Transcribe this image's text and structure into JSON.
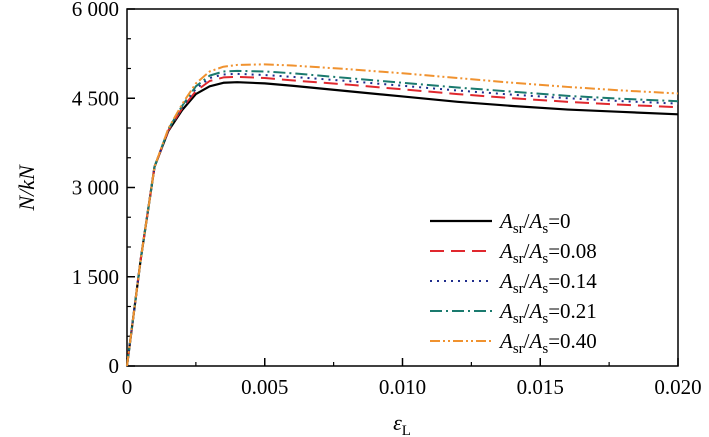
{
  "chart_data": {
    "type": "line",
    "xlabel": "εL",
    "ylabel": "N/kN",
    "xlim": [
      0,
      0.02
    ],
    "ylim": [
      0,
      6000
    ],
    "x_ticks": [
      {
        "value": 0,
        "label": "0"
      },
      {
        "value": 0.005,
        "label": "0.005"
      },
      {
        "value": 0.01,
        "label": "0.010"
      },
      {
        "value": 0.015,
        "label": "0.015"
      },
      {
        "value": 0.02,
        "label": "0.020"
      }
    ],
    "y_ticks": [
      {
        "value": 0,
        "label": "0"
      },
      {
        "value": 1500,
        "label": "1 500"
      },
      {
        "value": 3000,
        "label": "3 000"
      },
      {
        "value": 4500,
        "label": "4 500"
      },
      {
        "value": 6000,
        "label": "6 000"
      }
    ],
    "legend_position": "bottom-right",
    "series": [
      {
        "name": "Asr/As=0",
        "ratio": "0",
        "color": "#000000",
        "dash": "solid",
        "x": [
          0,
          0.0005,
          0.001,
          0.0015,
          0.002,
          0.0025,
          0.003,
          0.0035,
          0.004,
          0.005,
          0.006,
          0.008,
          0.01,
          0.012,
          0.014,
          0.016,
          0.018,
          0.02
        ],
        "y": [
          0,
          1800,
          3350,
          3950,
          4300,
          4570,
          4700,
          4760,
          4770,
          4750,
          4710,
          4620,
          4530,
          4440,
          4370,
          4310,
          4270,
          4230
        ]
      },
      {
        "name": "Asr/As=0.08",
        "ratio": "0.08",
        "color": "#e0282e",
        "dash": "long-dash",
        "x": [
          0,
          0.0005,
          0.001,
          0.0015,
          0.002,
          0.0025,
          0.003,
          0.0035,
          0.004,
          0.005,
          0.006,
          0.008,
          0.01,
          0.012,
          0.014,
          0.016,
          0.018,
          0.02
        ],
        "y": [
          0,
          1800,
          3350,
          3960,
          4330,
          4620,
          4790,
          4850,
          4860,
          4840,
          4800,
          4730,
          4650,
          4570,
          4500,
          4440,
          4390,
          4350
        ]
      },
      {
        "name": "Asr/As=0.14",
        "ratio": "0.14",
        "color": "#1f2d8c",
        "dash": "dotted",
        "x": [
          0,
          0.0005,
          0.001,
          0.0015,
          0.002,
          0.0025,
          0.003,
          0.0035,
          0.004,
          0.005,
          0.006,
          0.008,
          0.01,
          0.012,
          0.014,
          0.016,
          0.018,
          0.02
        ],
        "y": [
          0,
          1800,
          3350,
          3970,
          4350,
          4660,
          4840,
          4900,
          4910,
          4890,
          4860,
          4790,
          4710,
          4630,
          4560,
          4500,
          4450,
          4410
        ]
      },
      {
        "name": "Asr/As=0.21",
        "ratio": "0.21",
        "color": "#1a7a6e",
        "dash": "dash-dot",
        "x": [
          0,
          0.0005,
          0.001,
          0.0015,
          0.002,
          0.0025,
          0.003,
          0.0035,
          0.004,
          0.005,
          0.006,
          0.008,
          0.01,
          0.012,
          0.014,
          0.016,
          0.018,
          0.02
        ],
        "y": [
          0,
          1800,
          3350,
          3980,
          4370,
          4700,
          4880,
          4950,
          4960,
          4950,
          4920,
          4840,
          4760,
          4680,
          4610,
          4540,
          4490,
          4450
        ]
      },
      {
        "name": "Asr/As=0.40",
        "ratio": "0.40",
        "color": "#f0922f",
        "dash": "dash-dot-dot",
        "x": [
          0,
          0.0005,
          0.001,
          0.0015,
          0.002,
          0.0025,
          0.003,
          0.0035,
          0.004,
          0.005,
          0.006,
          0.008,
          0.01,
          0.012,
          0.014,
          0.016,
          0.018,
          0.02
        ],
        "y": [
          0,
          1800,
          3350,
          3990,
          4400,
          4750,
          4950,
          5030,
          5060,
          5070,
          5050,
          4990,
          4920,
          4840,
          4760,
          4690,
          4630,
          4580
        ]
      }
    ]
  }
}
